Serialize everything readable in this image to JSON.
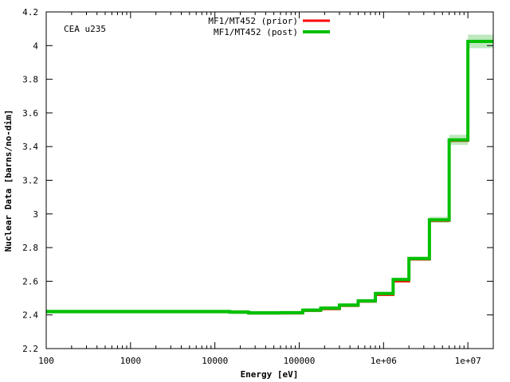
{
  "chart_data": {
    "type": "line",
    "step": true,
    "annotation": "CEA u235",
    "xlabel": "Energy [eV]",
    "ylabel": "Nuclear Data [barns/no-dim]",
    "xscale": "log",
    "xlim": [
      100,
      20000000
    ],
    "ylim": [
      2.2,
      4.2
    ],
    "x_ticks": [
      100,
      1000,
      10000,
      100000,
      1000000,
      10000000
    ],
    "x_tick_labels": [
      "100",
      "1000",
      "10000",
      "100000",
      "1e+06",
      "1e+07"
    ],
    "y_ticks": [
      2.2,
      2.4,
      2.6,
      2.8,
      3,
      3.2,
      3.4,
      3.6,
      3.8,
      4,
      4.2
    ],
    "y_tick_labels": [
      "2.2",
      "2.4",
      "2.6",
      "2.8",
      "3",
      "3.2",
      "3.4",
      "3.6",
      "3.8",
      "4",
      "4.2"
    ],
    "grid": false,
    "legend": "top-center",
    "bin_edges": [
      100,
      15000,
      25000,
      60000,
      110000,
      180000,
      300000,
      500000,
      800000,
      1300000,
      2000000,
      3500000,
      6000000,
      10000000,
      20000000
    ],
    "series": [
      {
        "name": "MF1/MT452 (prior)",
        "color": "#ff0000",
        "values": [
          2.42,
          2.415,
          2.41,
          2.41,
          2.425,
          2.435,
          2.455,
          2.48,
          2.52,
          2.6,
          2.73,
          2.96,
          3.435,
          4.025
        ]
      },
      {
        "name": "MF1/MT452 (post)",
        "color": "#00c000",
        "band_color": "#a8e0a8",
        "values": [
          2.42,
          2.417,
          2.412,
          2.413,
          2.428,
          2.44,
          2.458,
          2.483,
          2.527,
          2.61,
          2.735,
          2.965,
          3.44,
          4.025
        ],
        "uncertainty": [
          0.012,
          0.012,
          0.012,
          0.012,
          0.012,
          0.012,
          0.012,
          0.012,
          0.012,
          0.012,
          0.012,
          0.018,
          0.03,
          0.04
        ]
      }
    ]
  }
}
